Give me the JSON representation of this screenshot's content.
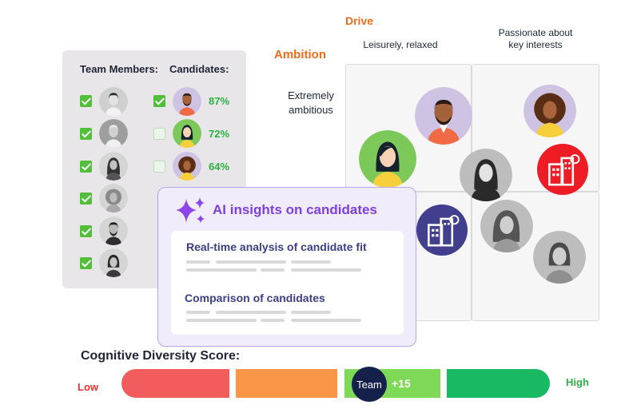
{
  "quadrant": {
    "drive_title": "Drive",
    "ambition_title": "Ambition",
    "drive_low": [
      "Leisurely, relaxed"
    ],
    "drive_high": [
      "Passionate about",
      "key interests"
    ],
    "ambition_high": [
      "Extremely",
      "ambitious"
    ]
  },
  "team_panel": {
    "team_members_header": "Team Members:",
    "candidates_header": "Candidates:",
    "team_members": [
      {
        "checked": true,
        "avatar": "man-short-hair-icon"
      },
      {
        "checked": true,
        "avatar": "man-grey-hair-icon"
      },
      {
        "checked": true,
        "avatar": "woman-long-hair-icon"
      },
      {
        "checked": true,
        "avatar": "woman-curly-hair-icon"
      },
      {
        "checked": true,
        "avatar": "man-beard-icon"
      },
      {
        "checked": true,
        "avatar": "woman-bob-hair-icon"
      }
    ],
    "candidates": [
      {
        "checked": true,
        "percent": "87%",
        "avatar": "man-beard-candidate-icon"
      },
      {
        "checked": false,
        "percent": "72%",
        "avatar": "woman-candidate-icon"
      },
      {
        "checked": false,
        "percent": "64%",
        "avatar": "woman-curly-candidate-icon"
      }
    ]
  },
  "ai_card": {
    "title": "AI insights on candidates",
    "items": [
      "Real-time analysis of candidate fit",
      "Comparison of candidates"
    ]
  },
  "score": {
    "title": "Cognitive Diversity Score:",
    "low_label": "Low",
    "high_label": "High",
    "team_label": "Team",
    "team_delta": "+15",
    "segment_colors": [
      "#f25c5c",
      "#fb9649",
      "#7ed957",
      "#19b863"
    ]
  },
  "colors": {
    "accent_orange": "#ee6b1a",
    "accent_purple": "#7c3fe0",
    "check_green": "#52bf3a",
    "percent_green": "#2cb043",
    "team_navy": "#15214a"
  }
}
